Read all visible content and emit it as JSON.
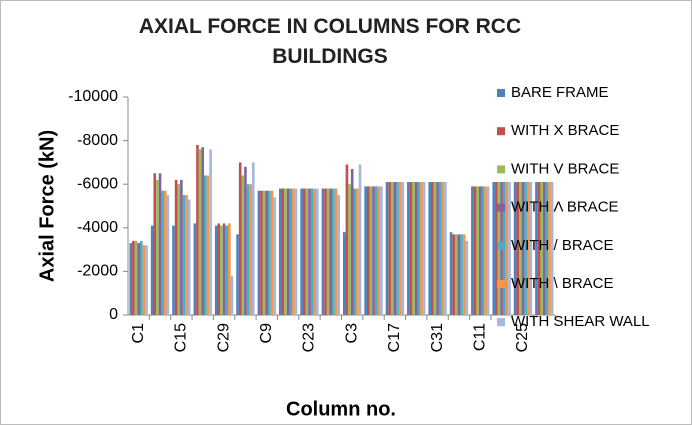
{
  "chart_data": {
    "type": "bar",
    "title": "AXIAL FORCE IN COLUMNS FOR RCC BUILDINGS",
    "y_label": "Axial Force (kN)",
    "x_label": "Column no.",
    "categories": [
      "C1",
      null,
      "C15",
      null,
      "C29",
      null,
      "C9",
      null,
      "C23",
      null,
      "C3",
      null,
      "C17",
      null,
      "C31",
      null,
      "C11",
      null,
      "C25",
      null
    ],
    "series": [
      {
        "name": "BARE FRAME",
        "color": "#4f81bd",
        "values": [
          -3300,
          -4100,
          -4100,
          -4200,
          -4100,
          -3700,
          -5700,
          -5800,
          -5800,
          -5800,
          -3800,
          -5900,
          -6100,
          -6100,
          -6100,
          -3800,
          -5900,
          -6100,
          -6100,
          -6100
        ]
      },
      {
        "name": "WITH X BRACE",
        "color": "#c0504d",
        "values": [
          -3400,
          -6500,
          -6200,
          -7800,
          -4200,
          -7000,
          -5700,
          -5800,
          -5800,
          -5800,
          -6900,
          -5900,
          -6100,
          -6100,
          -6100,
          -3700,
          -5900,
          -6100,
          -6100,
          -6100
        ]
      },
      {
        "name": "WITH V BRACE",
        "color": "#9bbb59",
        "values": [
          -3400,
          -6200,
          -6000,
          -7600,
          -4100,
          -6400,
          -5700,
          -5800,
          -5800,
          -5800,
          -6000,
          -5900,
          -6100,
          -6100,
          -6100,
          -3700,
          -5900,
          -6100,
          -6100,
          -6100
        ]
      },
      {
        "name": "WITH Λ BRACE",
        "color": "#8064a2",
        "values": [
          -3300,
          -6500,
          -6200,
          -7700,
          -4200,
          -6800,
          -5700,
          -5800,
          -5800,
          -5800,
          -6700,
          -5900,
          -6100,
          -6100,
          -6100,
          -3700,
          -5900,
          -6100,
          -6100,
          -6100
        ]
      },
      {
        "name": "WITH / BRACE",
        "color": "#4bacc6",
        "values": [
          -3400,
          -5700,
          -5500,
          -6400,
          -4100,
          -6000,
          -5700,
          -5800,
          -5800,
          -5800,
          -5800,
          -5900,
          -6100,
          -6100,
          -6100,
          -3700,
          -5900,
          -6100,
          -6100,
          -6100
        ]
      },
      {
        "name": "WITH \\ BRACE",
        "color": "#f79646",
        "values": [
          -3200,
          -5700,
          -5500,
          -6400,
          -4200,
          -6000,
          -5700,
          -5800,
          -5800,
          -5800,
          -5800,
          -5900,
          -6100,
          -6100,
          -6100,
          -3700,
          -5900,
          -6100,
          -6100,
          -6100
        ]
      },
      {
        "name": "WITH SHEAR WALL",
        "color": "#a5b7e0",
        "values": [
          -3200,
          -5500,
          -5300,
          -7600,
          -1800,
          -7000,
          -5400,
          -5800,
          -5800,
          -5500,
          -6900,
          -5900,
          -6100,
          -6100,
          -6100,
          -3400,
          -5900,
          -6100,
          -6100,
          -6100
        ]
      }
    ],
    "ylim": [
      0,
      -10000
    ],
    "yticks": [
      0,
      -2000,
      -4000,
      -6000,
      -8000,
      -10000
    ],
    "grid": false,
    "legend": "right"
  }
}
